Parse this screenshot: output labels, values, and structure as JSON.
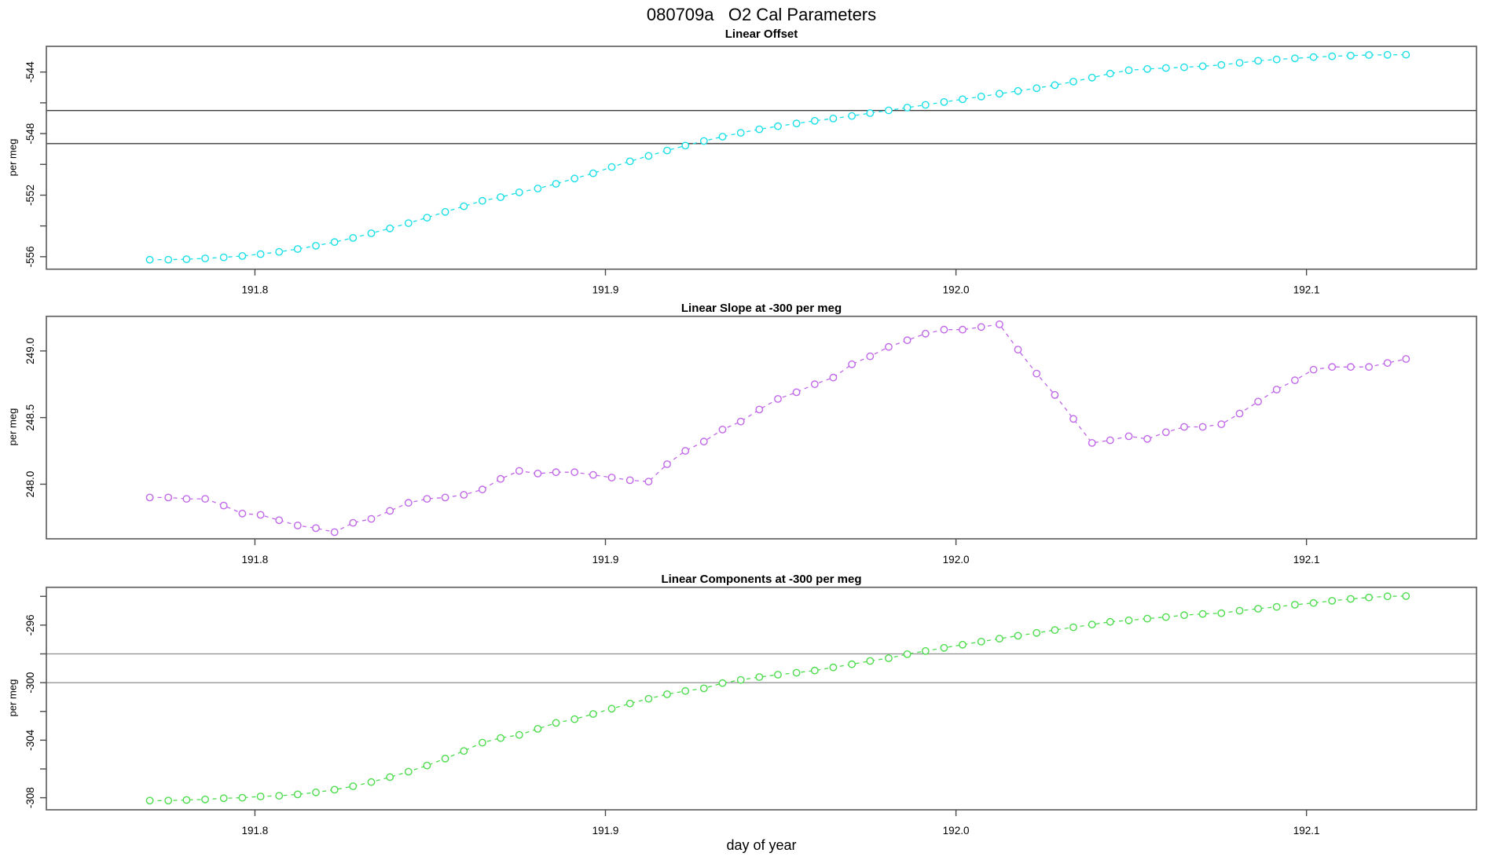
{
  "title": "080709a   O2 Cal Parameters",
  "xlabel": "day of year",
  "x_axis": {
    "ticks": [
      {
        "v": 191.8,
        "label": "191.8"
      },
      {
        "v": 191.9,
        "label": "191.9"
      },
      {
        "v": 192.0,
        "label": "192.0"
      },
      {
        "v": 192.1,
        "label": "192.1"
      }
    ],
    "xlim": [
      191.7405,
      192.1485
    ]
  },
  "chart_data": [
    {
      "type": "line",
      "title": "Linear Offset",
      "ylabel": "per meg",
      "color": "#19dfe8",
      "marker": "open-circle",
      "linestyle": "dashed",
      "legend": "none",
      "grid": "off",
      "ylim": [
        -556.81,
        -542.33
      ],
      "ytick_values": [
        -544,
        -548,
        -552,
        -556
      ],
      "ytick_labels": [
        "-544",
        "-548",
        "-552",
        "-556"
      ],
      "ytick_minor": [
        -546,
        -550,
        -554
      ],
      "ref_lines": [
        -546.5,
        -548.65
      ],
      "ref_line_color": "#3b3b3b",
      "x": [
        191.77,
        191.7753,
        191.7805,
        191.7858,
        191.7911,
        191.7964,
        191.8016,
        191.8069,
        191.8122,
        191.8174,
        191.8227,
        191.828,
        191.8332,
        191.8385,
        191.8438,
        191.8491,
        191.8543,
        191.8596,
        191.8649,
        191.8701,
        191.8754,
        191.8807,
        191.8859,
        191.8912,
        191.8965,
        191.9018,
        191.907,
        191.9123,
        191.9176,
        191.9228,
        191.9281,
        191.9334,
        191.9386,
        191.9439,
        191.9492,
        191.9545,
        191.9597,
        191.965,
        191.9703,
        191.9755,
        191.9808,
        191.9861,
        191.9913,
        191.9966,
        192.0019,
        192.0072,
        192.0124,
        192.0177,
        192.023,
        192.0282,
        192.0335,
        192.0388,
        192.044,
        192.0493,
        192.0546,
        192.0599,
        192.0651,
        192.0704,
        192.0757,
        192.0809,
        192.0862,
        192.0915,
        192.0967,
        192.102,
        192.1073,
        192.1126,
        192.1178,
        192.1231,
        192.1284
      ],
      "values": [
        -556.2,
        -556.19,
        -556.16,
        -556.11,
        -556.04,
        -555.95,
        -555.83,
        -555.68,
        -555.5,
        -555.29,
        -555.05,
        -554.78,
        -554.48,
        -554.16,
        -553.82,
        -553.46,
        -553.09,
        -552.72,
        -552.37,
        -552.13,
        -551.82,
        -551.57,
        -551.26,
        -550.92,
        -550.58,
        -550.17,
        -549.8,
        -549.45,
        -549.1,
        -548.78,
        -548.48,
        -548.2,
        -547.95,
        -547.72,
        -547.52,
        -547.34,
        -547.17,
        -547.02,
        -546.85,
        -546.67,
        -546.49,
        -546.31,
        -546.13,
        -545.95,
        -545.77,
        -545.59,
        -545.41,
        -545.23,
        -545.05,
        -544.85,
        -544.62,
        -544.36,
        -544.1,
        -543.88,
        -543.8,
        -543.74,
        -543.69,
        -543.62,
        -543.54,
        -543.4,
        -543.27,
        -543.18,
        -543.11,
        -543.03,
        -542.98,
        -542.93,
        -542.89,
        -542.88,
        -542.87
      ]
    },
    {
      "type": "line",
      "title": "Linear Slope at -300 per meg",
      "ylabel": "per meg",
      "color": "#c168e8",
      "marker": "open-circle",
      "linestyle": "dashed",
      "legend": "none",
      "grid": "off",
      "ylim": [
        247.59,
        249.26
      ],
      "ytick_values": [
        249.0,
        248.5,
        248.0
      ],
      "ytick_labels": [
        "249.0",
        "248.5",
        "248.0"
      ],
      "ytick_minor": [],
      "ref_lines": [],
      "ref_line_color": "#3b3b3b",
      "x": [
        191.77,
        191.7753,
        191.7805,
        191.7858,
        191.7911,
        191.7964,
        191.8016,
        191.8069,
        191.8122,
        191.8174,
        191.8227,
        191.828,
        191.8332,
        191.8385,
        191.8438,
        191.8491,
        191.8543,
        191.8596,
        191.8649,
        191.8701,
        191.8754,
        191.8807,
        191.8859,
        191.8912,
        191.8965,
        191.9018,
        191.907,
        191.9123,
        191.9176,
        191.9228,
        191.9281,
        191.9334,
        191.9386,
        191.9439,
        191.9492,
        191.9545,
        191.9597,
        191.965,
        191.9703,
        191.9755,
        191.9808,
        191.9861,
        191.9913,
        191.9966,
        192.0019,
        192.0072,
        192.0124,
        192.0177,
        192.023,
        192.0282,
        192.0335,
        192.0388,
        192.044,
        192.0493,
        192.0546,
        192.0599,
        192.0651,
        192.0704,
        192.0757,
        192.0809,
        192.0862,
        192.0915,
        192.0967,
        192.102,
        192.1073,
        192.1126,
        192.1178,
        192.1231,
        192.1284
      ],
      "values": [
        247.9,
        247.9,
        247.89,
        247.89,
        247.84,
        247.78,
        247.77,
        247.73,
        247.69,
        247.67,
        247.64,
        247.71,
        247.74,
        247.8,
        247.86,
        247.89,
        247.9,
        247.92,
        247.96,
        248.04,
        248.1,
        248.08,
        248.09,
        248.09,
        248.07,
        248.05,
        248.03,
        248.02,
        248.15,
        248.25,
        248.32,
        248.41,
        248.47,
        248.56,
        248.64,
        248.69,
        248.75,
        248.8,
        248.9,
        248.96,
        249.03,
        249.08,
        249.13,
        249.16,
        249.16,
        249.18,
        249.2,
        249.01,
        248.83,
        248.67,
        248.49,
        248.31,
        248.33,
        248.36,
        248.34,
        248.39,
        248.43,
        248.43,
        248.45,
        248.53,
        248.62,
        248.71,
        248.78,
        248.86,
        248.88,
        248.88,
        248.88,
        248.91,
        248.94
      ]
    },
    {
      "type": "line",
      "title": "Linear Components at -300 per meg",
      "ylabel": "per meg",
      "color": "#4ddc4d",
      "marker": "open-circle",
      "linestyle": "dashed",
      "legend": "none",
      "grid": "off",
      "ylim": [
        -308.84,
        -293.37
      ],
      "ytick_values": [
        -296,
        -300,
        -304,
        -308
      ],
      "ytick_labels": [
        "-296",
        "-300",
        "-304",
        "-308"
      ],
      "ytick_minor": [
        -294,
        -298,
        -302,
        -306
      ],
      "ref_lines": [
        -298,
        -300
      ],
      "ref_line_color": "#8c8c8c",
      "x": [
        191.77,
        191.7753,
        191.7805,
        191.7858,
        191.7911,
        191.7964,
        191.8016,
        191.8069,
        191.8122,
        191.8174,
        191.8227,
        191.828,
        191.8332,
        191.8385,
        191.8438,
        191.8491,
        191.8543,
        191.8596,
        191.8649,
        191.8701,
        191.8754,
        191.8807,
        191.8859,
        191.8912,
        191.8965,
        191.9018,
        191.907,
        191.9123,
        191.9176,
        191.9228,
        191.9281,
        191.9334,
        191.9386,
        191.9439,
        191.9492,
        191.9545,
        191.9597,
        191.965,
        191.9703,
        191.9755,
        191.9808,
        191.9861,
        191.9913,
        191.9966,
        192.0019,
        192.0072,
        192.0124,
        192.0177,
        192.023,
        192.0282,
        192.0335,
        192.0388,
        192.044,
        192.0493,
        192.0546,
        192.0599,
        192.0651,
        192.0704,
        192.0757,
        192.0809,
        192.0862,
        192.0915,
        192.0967,
        192.102,
        192.1073,
        192.1126,
        192.1178,
        192.1231,
        192.1284
      ],
      "values": [
        -308.2,
        -308.2,
        -308.16,
        -308.12,
        -308.04,
        -308.0,
        -307.91,
        -307.86,
        -307.77,
        -307.63,
        -307.44,
        -307.2,
        -306.91,
        -306.57,
        -306.19,
        -305.76,
        -305.28,
        -304.75,
        -304.17,
        -303.85,
        -303.63,
        -303.21,
        -302.8,
        -302.54,
        -302.18,
        -301.81,
        -301.45,
        -301.12,
        -300.81,
        -300.58,
        -300.4,
        -300.03,
        -299.81,
        -299.61,
        -299.45,
        -299.31,
        -299.16,
        -298.94,
        -298.72,
        -298.49,
        -298.3,
        -298.02,
        -297.8,
        -297.58,
        -297.36,
        -297.15,
        -296.94,
        -296.74,
        -296.54,
        -296.34,
        -296.15,
        -295.96,
        -295.77,
        -295.67,
        -295.55,
        -295.44,
        -295.31,
        -295.22,
        -295.17,
        -295.0,
        -294.86,
        -294.73,
        -294.58,
        -294.46,
        -294.31,
        -294.18,
        -294.08,
        -294.0,
        -293.98
      ]
    }
  ]
}
